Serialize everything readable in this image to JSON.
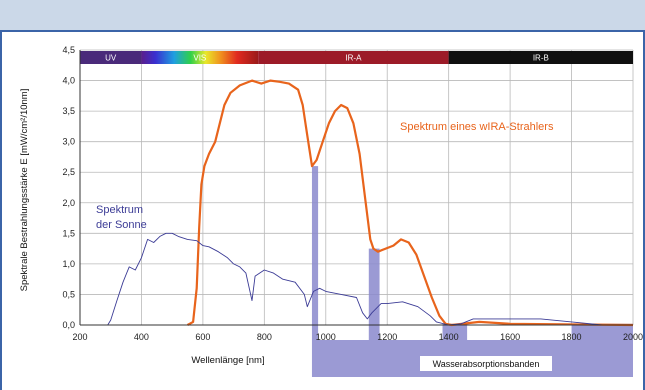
{
  "chart_data": {
    "type": "line",
    "xlabel": "Wellenlänge [nm]",
    "ylabel": "Spektrale Bestrahlungsstärke E [mW/cm²/10nm]",
    "xlim": [
      200,
      2000
    ],
    "ylim": [
      0,
      4.5
    ],
    "x_ticks": [
      200,
      400,
      600,
      800,
      1000,
      1200,
      1400,
      1600,
      1800,
      2000
    ],
    "y_ticks": [
      "0,0",
      "0,5",
      "1,0",
      "1,5",
      "2,0",
      "2,5",
      "3,0",
      "3,5",
      "4,0",
      "4,5"
    ],
    "grid": true,
    "spectral_bands": [
      {
        "label": "UV",
        "from": 200,
        "to": 400
      },
      {
        "label": "VIS",
        "from": 400,
        "to": 780
      },
      {
        "label": "IR-A",
        "from": 780,
        "to": 1400
      },
      {
        "label": "IR-B",
        "from": 1400,
        "to": 2000
      }
    ],
    "series": [
      {
        "name": "Spektrum eines wIRA-Strahlers",
        "color": "#e8641c",
        "points": [
          [
            550,
            0
          ],
          [
            568,
            0.05
          ],
          [
            580,
            0.6
          ],
          [
            588,
            1.6
          ],
          [
            595,
            2.3
          ],
          [
            605,
            2.6
          ],
          [
            620,
            2.8
          ],
          [
            640,
            3.0
          ],
          [
            655,
            3.3
          ],
          [
            670,
            3.6
          ],
          [
            690,
            3.8
          ],
          [
            720,
            3.92
          ],
          [
            760,
            4.0
          ],
          [
            790,
            3.95
          ],
          [
            820,
            4.0
          ],
          [
            850,
            3.98
          ],
          [
            880,
            3.95
          ],
          [
            910,
            3.85
          ],
          [
            925,
            3.6
          ],
          [
            940,
            3.1
          ],
          [
            955,
            2.6
          ],
          [
            970,
            2.7
          ],
          [
            990,
            3.0
          ],
          [
            1010,
            3.3
          ],
          [
            1030,
            3.5
          ],
          [
            1050,
            3.6
          ],
          [
            1070,
            3.55
          ],
          [
            1090,
            3.3
          ],
          [
            1110,
            2.8
          ],
          [
            1130,
            2.0
          ],
          [
            1145,
            1.4
          ],
          [
            1155,
            1.25
          ],
          [
            1170,
            1.2
          ],
          [
            1195,
            1.25
          ],
          [
            1220,
            1.3
          ],
          [
            1245,
            1.4
          ],
          [
            1270,
            1.35
          ],
          [
            1295,
            1.15
          ],
          [
            1320,
            0.8
          ],
          [
            1345,
            0.45
          ],
          [
            1370,
            0.15
          ],
          [
            1390,
            0.02
          ],
          [
            1410,
            0
          ],
          [
            1500,
            0.05
          ],
          [
            1600,
            0.02
          ],
          [
            2000,
            0
          ]
        ]
      },
      {
        "name": "Spektrum der Sonne",
        "color": "#3c3c96",
        "points": [
          [
            290,
            0
          ],
          [
            300,
            0.08
          ],
          [
            320,
            0.4
          ],
          [
            340,
            0.7
          ],
          [
            360,
            0.95
          ],
          [
            380,
            0.9
          ],
          [
            400,
            1.1
          ],
          [
            420,
            1.4
          ],
          [
            440,
            1.35
          ],
          [
            460,
            1.45
          ],
          [
            480,
            1.5
          ],
          [
            500,
            1.5
          ],
          [
            520,
            1.45
          ],
          [
            550,
            1.4
          ],
          [
            580,
            1.38
          ],
          [
            600,
            1.3
          ],
          [
            620,
            1.28
          ],
          [
            650,
            1.2
          ],
          [
            680,
            1.1
          ],
          [
            700,
            1.0
          ],
          [
            720,
            0.95
          ],
          [
            740,
            0.85
          ],
          [
            760,
            0.4
          ],
          [
            770,
            0.8
          ],
          [
            800,
            0.9
          ],
          [
            830,
            0.85
          ],
          [
            860,
            0.75
          ],
          [
            900,
            0.7
          ],
          [
            930,
            0.5
          ],
          [
            940,
            0.3
          ],
          [
            960,
            0.55
          ],
          [
            980,
            0.6
          ],
          [
            1000,
            0.55
          ],
          [
            1050,
            0.5
          ],
          [
            1100,
            0.45
          ],
          [
            1120,
            0.2
          ],
          [
            1135,
            0.1
          ],
          [
            1150,
            0.2
          ],
          [
            1180,
            0.35
          ],
          [
            1200,
            0.35
          ],
          [
            1250,
            0.38
          ],
          [
            1300,
            0.3
          ],
          [
            1340,
            0.15
          ],
          [
            1360,
            0.05
          ],
          [
            1400,
            0.0
          ],
          [
            1440,
            0.02
          ],
          [
            1480,
            0.1
          ],
          [
            1550,
            0.1
          ],
          [
            1600,
            0.1
          ],
          [
            1700,
            0.1
          ],
          [
            1800,
            0.05
          ],
          [
            1900,
            0.0
          ],
          [
            2000,
            0.0
          ]
        ]
      }
    ],
    "water_bands": [
      {
        "from": 955,
        "to": 975,
        "top": 2.6
      },
      {
        "from": 1140,
        "to": 1175,
        "top": 1.25
      },
      {
        "from": 1380,
        "to": 1460,
        "top": 0.02
      },
      {
        "from": 1800,
        "to": 2000,
        "top": 0.02
      }
    ],
    "annotations": {
      "orange_label": "Spektrum eines wIRA-Strahlers",
      "sun_label_line1": "Spektrum",
      "sun_label_line2": "der Sonne",
      "water_label": "Wasserabsorptionsbanden"
    }
  }
}
